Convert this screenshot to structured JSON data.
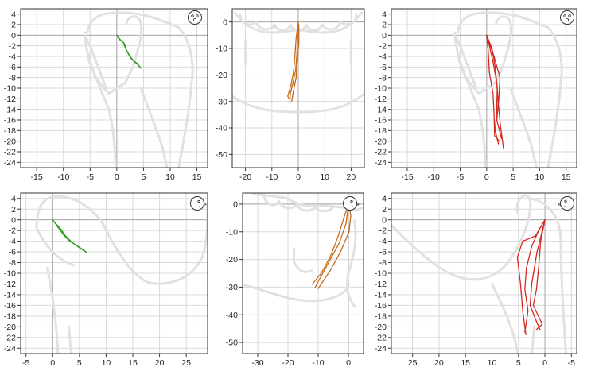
{
  "chart_data": [
    {
      "type": "line",
      "view": "sagittal",
      "orientation": "front-view face icon",
      "xlim": [
        -18,
        17
      ],
      "ylim": [
        -25,
        5
      ],
      "xticks": [
        -15,
        -10,
        -5,
        0,
        5,
        10,
        15
      ],
      "yticks": [
        4,
        2,
        0,
        -2,
        -4,
        -6,
        -8,
        -10,
        -12,
        -14,
        -16,
        -18,
        -20,
        -22,
        -24
      ],
      "grid": true,
      "background": "jaw outline (grey)",
      "series": [
        {
          "color": "#2e9a1e",
          "points": [
            [
              0,
              0
            ],
            [
              0.5,
              -0.8
            ],
            [
              1.2,
              -1.3
            ],
            [
              1.6,
              -2.4
            ],
            [
              2.2,
              -3.6
            ],
            [
              2.8,
              -4.6
            ],
            [
              3.8,
              -5.3
            ],
            [
              4.5,
              -6.2
            ]
          ]
        },
        {
          "color": "#2e9a1e",
          "points": [
            [
              0,
              0
            ],
            [
              0.7,
              -0.9
            ],
            [
              1.4,
              -1.6
            ],
            [
              1.8,
              -2.8
            ],
            [
              2.5,
              -4.0
            ],
            [
              3.2,
              -4.9
            ],
            [
              4.0,
              -5.6
            ],
            [
              4.4,
              -6.1
            ]
          ]
        }
      ]
    },
    {
      "type": "line",
      "view": "frontal",
      "orientation": "",
      "xlim": [
        -25,
        25
      ],
      "ylim": [
        -55,
        5
      ],
      "xticks": [
        -20,
        -10,
        0,
        10,
        20
      ],
      "yticks": [
        0,
        -10,
        -20,
        -30,
        -40,
        -50
      ],
      "grid": true,
      "background": "teeth and mandible outline (grey)",
      "series": [
        {
          "color": "#c56a1a",
          "points": [
            [
              0,
              0
            ],
            [
              -0.3,
              -5
            ],
            [
              -0.5,
              -12
            ],
            [
              -1,
              -18
            ],
            [
              -2,
              -23
            ],
            [
              -3,
              -27
            ],
            [
              -3.2,
              -30
            ]
          ]
        },
        {
          "color": "#c56a1a",
          "points": [
            [
              0,
              0
            ],
            [
              -0.8,
              -6
            ],
            [
              -1.3,
              -13
            ],
            [
              -1.8,
              -19
            ],
            [
              -2.8,
              -24
            ],
            [
              -4,
              -28
            ],
            [
              -3.5,
              -29
            ]
          ]
        },
        {
          "color": "#c56a1a",
          "points": [
            [
              0.2,
              -1
            ],
            [
              0.2,
              -8
            ],
            [
              -0.4,
              -15
            ],
            [
              -0.8,
              -21
            ],
            [
              -1.8,
              -26
            ],
            [
              -2.5,
              -30
            ]
          ]
        }
      ]
    },
    {
      "type": "line",
      "view": "sagittal",
      "orientation": "front-view face icon",
      "xlim": [
        -18,
        17
      ],
      "ylim": [
        -25,
        5
      ],
      "xticks": [
        -15,
        -10,
        -5,
        0,
        5,
        10,
        15
      ],
      "yticks": [
        4,
        2,
        0,
        -2,
        -4,
        -6,
        -8,
        -10,
        -12,
        -14,
        -16,
        -18,
        -20,
        -22,
        -24
      ],
      "grid": true,
      "background": "jaw outline (grey)",
      "series": [
        {
          "color": "#d42a1e",
          "points": [
            [
              0,
              0
            ],
            [
              0.5,
              -2
            ],
            [
              1.2,
              -5
            ],
            [
              1.9,
              -9
            ],
            [
              2.2,
              -13
            ],
            [
              2.6,
              -17
            ],
            [
              3.2,
              -21.5
            ]
          ]
        },
        {
          "color": "#d42a1e",
          "points": [
            [
              0,
              0
            ],
            [
              1.0,
              -2.5
            ],
            [
              1.6,
              -6
            ],
            [
              2.0,
              -10
            ],
            [
              1.9,
              -14
            ],
            [
              1.6,
              -18
            ],
            [
              2.2,
              -20.5
            ]
          ]
        },
        {
          "color": "#d42a1e",
          "points": [
            [
              0,
              0
            ],
            [
              0.3,
              -3
            ],
            [
              0.5,
              -7
            ],
            [
              1.2,
              -11
            ],
            [
              1.4,
              -15
            ],
            [
              1.5,
              -19
            ],
            [
              2.4,
              -20
            ]
          ]
        },
        {
          "color": "#d42a1e",
          "points": [
            [
              0,
              0
            ],
            [
              1.4,
              -4
            ],
            [
              2.5,
              -8
            ],
            [
              2.3,
              -12
            ],
            [
              1.9,
              -16
            ],
            [
              2.8,
              -19.5
            ]
          ]
        }
      ]
    },
    {
      "type": "line",
      "view": "sagittal",
      "orientation": "right-profile face icon",
      "xlim": [
        -6,
        29
      ],
      "ylim": [
        -25,
        5
      ],
      "xticks": [
        -5,
        0,
        5,
        10,
        15,
        20,
        25
      ],
      "yticks": [
        4,
        2,
        0,
        -2,
        -4,
        -6,
        -8,
        -10,
        -12,
        -14,
        -16,
        -18,
        -20,
        -22,
        -24
      ],
      "grid": true,
      "background": "jaw outline (grey)",
      "series": [
        {
          "color": "#2e9a1e",
          "points": [
            [
              0,
              0
            ],
            [
              1,
              -1.4
            ],
            [
              2,
              -2.8
            ],
            [
              3.2,
              -4.0
            ],
            [
              4.8,
              -5.0
            ],
            [
              6.5,
              -6.2
            ]
          ]
        },
        {
          "color": "#2e9a1e",
          "points": [
            [
              0.2,
              -0.3
            ],
            [
              1.4,
              -1.6
            ],
            [
              2.4,
              -3.0
            ],
            [
              3.6,
              -4.2
            ],
            [
              5.1,
              -5.3
            ],
            [
              6.2,
              -6.0
            ]
          ]
        }
      ]
    },
    {
      "type": "line",
      "view": "frontal",
      "orientation": "right-profile face icon",
      "xlim": [
        -35,
        5
      ],
      "ylim": [
        -54,
        4
      ],
      "xticks": [
        -30,
        -20,
        -10,
        0
      ],
      "yticks": [
        0,
        -10,
        -20,
        -30,
        -40,
        -50
      ],
      "grid": true,
      "background": "teeth and mandible outline (grey)",
      "series": [
        {
          "color": "#c56a1a",
          "points": [
            [
              0,
              0
            ],
            [
              -1.5,
              -5
            ],
            [
              -3.5,
              -12
            ],
            [
              -6,
              -19
            ],
            [
              -9,
              -25
            ],
            [
              -12,
              -29
            ]
          ]
        },
        {
          "color": "#c56a1a",
          "points": [
            [
              0,
              0
            ],
            [
              0.8,
              -4
            ],
            [
              0.2,
              -10
            ],
            [
              -2.5,
              -17
            ],
            [
              -6,
              -24
            ],
            [
              -10,
              -30.5
            ]
          ]
        },
        {
          "color": "#c56a1a",
          "points": [
            [
              0,
              -0.5
            ],
            [
              -0.8,
              -7
            ],
            [
              -3,
              -14
            ],
            [
              -6.5,
              -21
            ],
            [
              -9.5,
              -27
            ],
            [
              -11,
              -30
            ]
          ]
        }
      ]
    },
    {
      "type": "line",
      "view": "sagittal",
      "orientation": "left-profile face icon",
      "xlim": [
        29,
        -6
      ],
      "ylim": [
        -25,
        5
      ],
      "xticks": [
        25,
        20,
        15,
        10,
        5,
        0,
        -5
      ],
      "yticks": [
        4,
        2,
        0,
        -2,
        -4,
        -6,
        -8,
        -10,
        -12,
        -14,
        -16,
        -18,
        -20,
        -22,
        -24
      ],
      "grid": true,
      "background": "jaw outline (grey)",
      "series": [
        {
          "color": "#d42a1e",
          "points": [
            [
              0,
              0
            ],
            [
              1.2,
              -2
            ],
            [
              2.5,
              -5
            ],
            [
              3.5,
              -9
            ],
            [
              3.8,
              -13
            ],
            [
              3.2,
              -17
            ],
            [
              3.8,
              -21
            ]
          ]
        },
        {
          "color": "#d42a1e",
          "points": [
            [
              0,
              0
            ],
            [
              1.8,
              -3
            ],
            [
              4.2,
              -4
            ],
            [
              5.2,
              -7
            ],
            [
              4.6,
              -12
            ],
            [
              4.2,
              -17
            ],
            [
              3.6,
              -21.5
            ]
          ]
        },
        {
          "color": "#d42a1e",
          "points": [
            [
              0,
              0
            ],
            [
              0.8,
              -4
            ],
            [
              1.2,
              -9
            ],
            [
              1.6,
              -13
            ],
            [
              2.2,
              -16
            ],
            [
              0.5,
              -19.5
            ],
            [
              1.6,
              -20.5
            ]
          ]
        },
        {
          "color": "#d42a1e",
          "points": [
            [
              0,
              0
            ],
            [
              1.5,
              -6
            ],
            [
              2.5,
              -12
            ],
            [
              2.8,
              -16
            ],
            [
              1.6,
              -19
            ],
            [
              0.9,
              -20.6
            ]
          ]
        }
      ]
    }
  ]
}
